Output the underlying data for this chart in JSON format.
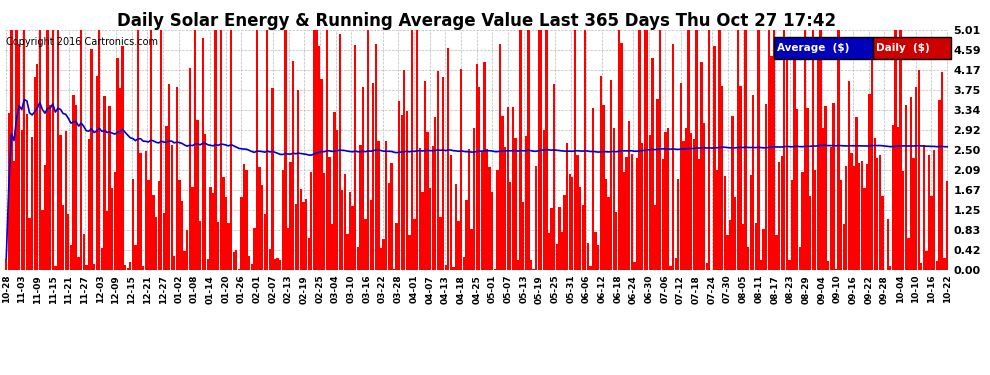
{
  "title": "Daily Solar Energy & Running Average Value Last 365 Days Thu Oct 27 17:42",
  "copyright": "Copyright 2016 Cartronics.com",
  "legend_average": "Average  ($)",
  "legend_daily": "Daily  ($)",
  "yticks": [
    0.0,
    0.42,
    0.83,
    1.25,
    1.67,
    2.09,
    2.5,
    2.92,
    3.34,
    3.75,
    4.17,
    4.59,
    5.01
  ],
  "ylim": [
    0.0,
    5.01
  ],
  "bar_color": "#ff0000",
  "average_line_color": "#0000cc",
  "background_color": "#ffffff",
  "grid_color": "#bbbbbb",
  "title_fontsize": 12,
  "n_days": 365,
  "xtick_labels": [
    "10-28",
    "11-03",
    "11-09",
    "11-15",
    "11-21",
    "11-27",
    "12-03",
    "12-09",
    "12-15",
    "12-21",
    "12-27",
    "01-02",
    "01-08",
    "01-14",
    "01-20",
    "01-26",
    "02-01",
    "02-07",
    "02-13",
    "02-19",
    "02-25",
    "03-04",
    "03-10",
    "03-16",
    "03-22",
    "03-28",
    "04-01",
    "04-07",
    "04-13",
    "04-18",
    "04-25",
    "05-01",
    "05-07",
    "05-13",
    "05-19",
    "05-25",
    "05-31",
    "06-06",
    "06-12",
    "06-18",
    "06-24",
    "06-30",
    "07-06",
    "07-12",
    "07-18",
    "07-24",
    "07-30",
    "08-05",
    "08-11",
    "08-17",
    "08-23",
    "08-29",
    "09-04",
    "09-10",
    "09-16",
    "09-22",
    "09-28",
    "10-04",
    "10-10",
    "10-16",
    "10-22"
  ]
}
